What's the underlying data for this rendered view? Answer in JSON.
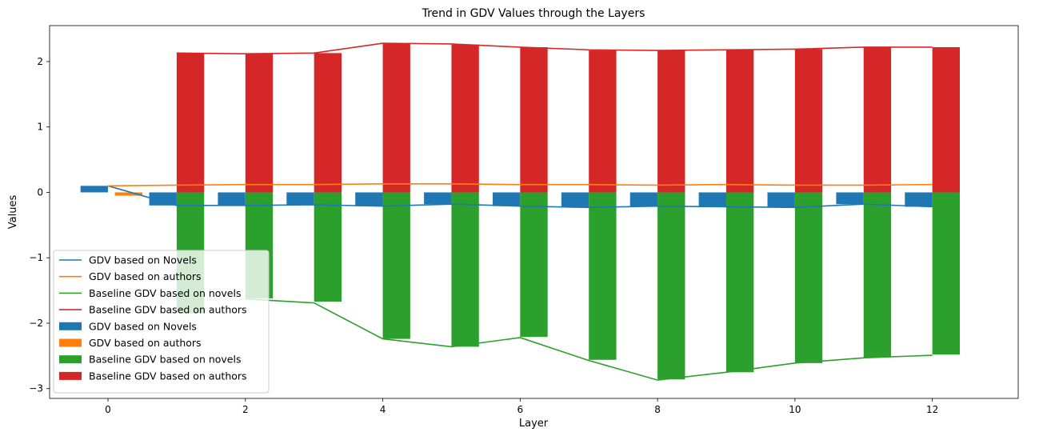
{
  "chart_data": {
    "type": "bar",
    "title": "Trend in GDV Values through the Layers",
    "xlabel": "Layer",
    "ylabel": "Values",
    "xlim": [
      -0.85,
      13.25
    ],
    "ylim": [
      -3.15,
      2.55
    ],
    "xticks": [
      0,
      2,
      4,
      6,
      8,
      10,
      12
    ],
    "yticks": [
      -3,
      -2,
      -1,
      0,
      1,
      2
    ],
    "x": [
      0,
      1,
      2,
      3,
      4,
      5,
      6,
      7,
      8,
      9,
      10,
      11,
      12
    ],
    "grid": false,
    "legend_position": "lower-left",
    "line_series": [
      {
        "name": "GDV based on Novels",
        "color": "#1f77b4",
        "values": [
          0.1,
          -0.2,
          -0.2,
          -0.19,
          -0.21,
          -0.18,
          -0.21,
          -0.23,
          -0.21,
          -0.22,
          -0.23,
          -0.18,
          -0.22
        ]
      },
      {
        "name": "GDV based on authors",
        "color": "#ff7f0e",
        "values": [
          0.1,
          0.11,
          0.12,
          0.12,
          0.13,
          0.13,
          0.12,
          0.12,
          0.11,
          0.12,
          0.11,
          0.11,
          0.12
        ]
      },
      {
        "name": "Baseline GDV based on novels",
        "color": "#2ca02c",
        "values": [
          null,
          null,
          -1.63,
          -1.69,
          -2.24,
          -2.36,
          -2.22,
          -2.57,
          -2.87,
          -2.75,
          -2.61,
          -2.53,
          -2.49
        ]
      },
      {
        "name": "Baseline GDV based on authors",
        "color": "#d62728",
        "values": [
          null,
          2.13,
          2.12,
          2.13,
          2.28,
          2.27,
          2.22,
          2.18,
          2.17,
          2.18,
          2.19,
          2.22,
          2.22
        ]
      }
    ],
    "bar_series": [
      {
        "name": "GDV based on Novels",
        "color": "#1f77b4",
        "offset": -0.2,
        "values": [
          0.1,
          -0.2,
          -0.2,
          -0.19,
          -0.21,
          -0.18,
          -0.21,
          -0.23,
          -0.21,
          -0.22,
          -0.23,
          -0.18,
          -0.22
        ]
      },
      {
        "name": "GDV based on authors",
        "color": "#ff7f0e",
        "offset": 0.3,
        "values": [
          -0.05,
          null,
          null,
          null,
          null,
          null,
          null,
          null,
          null,
          null,
          null,
          null,
          null
        ]
      },
      {
        "name": "Baseline GDV based on novels",
        "color": "#2ca02c",
        "offset": 0.2,
        "values": [
          null,
          -1.85,
          -1.62,
          -1.67,
          -2.24,
          -2.36,
          -2.21,
          -2.56,
          -2.86,
          -2.75,
          -2.61,
          -2.52,
          -2.48
        ]
      },
      {
        "name": "Baseline GDV based on authors",
        "color": "#d62728",
        "offset": 0.2,
        "values": [
          null,
          2.13,
          2.12,
          2.13,
          2.28,
          2.26,
          2.22,
          2.17,
          2.17,
          2.18,
          2.19,
          2.22,
          2.22
        ]
      }
    ]
  }
}
